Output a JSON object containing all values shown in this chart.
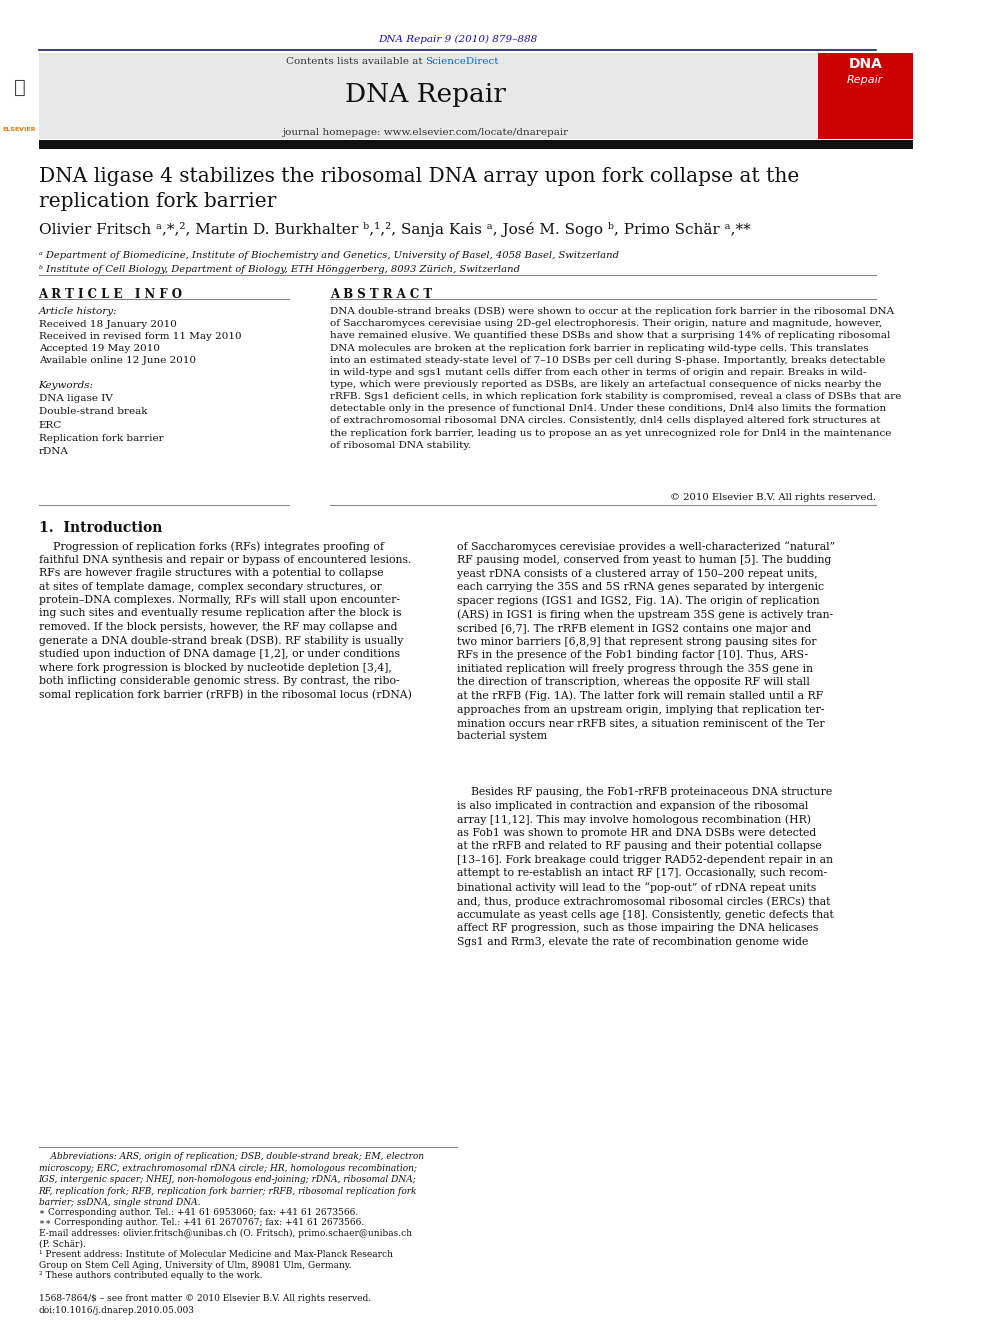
{
  "page_width": 9.92,
  "page_height": 13.23,
  "bg_color": "#ffffff",
  "journal_ref": "DNA Repair 9 (2010) 879–888",
  "journal_ref_color": "#1a0dab",
  "journal_name": "DNA Repair",
  "contents_text": "Contents lists available at ",
  "sciencedirect_text": "ScienceDirect",
  "sciencedirect_color": "#0066cc",
  "journal_url": "journal homepage: www.elsevier.com/locate/dnarepair",
  "journal_url_color": "#0066cc",
  "header_bg": "#e8e8e8",
  "red_box_bg": "#cc0000",
  "title": "DNA ligase 4 stabilizes the ribosomal DNA array upon fork collapse at the\nreplication fork barrier",
  "authors": "Olivier Fritsch ᵃ,*,², Martin D. Burkhalter ᵇ,¹,², Sanja Kais ᵃ, José M. Sogo ᵇ, Primo Schär ᵃ,**",
  "affil_a": "ᵃ Department of Biomedicine, Institute of Biochemistry and Genetics, University of Basel, 4058 Basel, Switzerland",
  "affil_b": "ᵇ Institute of Cell Biology, Department of Biology, ETH Hönggerberg, 8093 Zürich, Switzerland",
  "article_info_header": "A R T I C L E   I N F O",
  "abstract_header": "A B S T R A C T",
  "article_history_label": "Article history:",
  "received": "Received 18 January 2010",
  "received_revised": "Received in revised form 11 May 2010",
  "accepted": "Accepted 19 May 2010",
  "available": "Available online 12 June 2010",
  "keywords_label": "Keywords:",
  "keywords": [
    "DNA ligase IV",
    "Double-strand break",
    "ERC",
    "Replication fork barrier",
    "rDNA"
  ],
  "copyright": "© 2010 Elsevier B.V. All rights reserved.",
  "intro_header": "1.  Introduction",
  "issn": "1568-7864/$ – see front matter © 2010 Elsevier B.V. All rights reserved.",
  "doi": "doi:10.1016/j.dnarep.2010.05.003"
}
